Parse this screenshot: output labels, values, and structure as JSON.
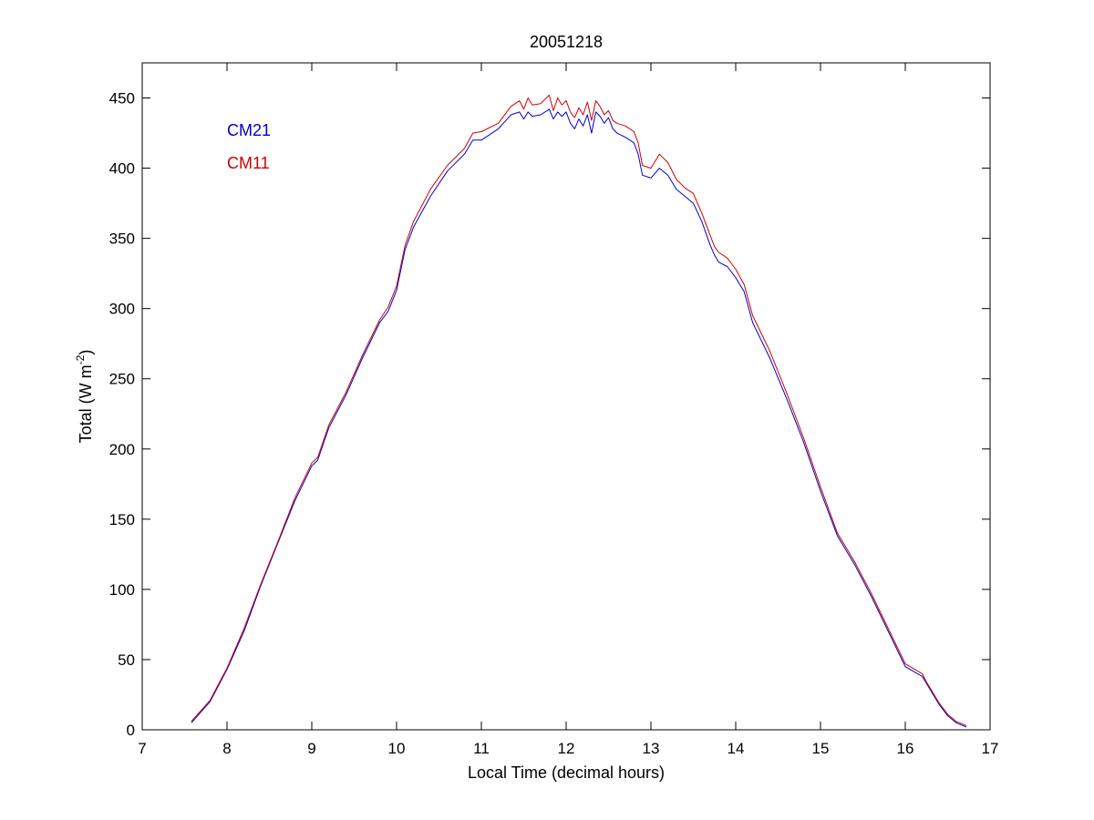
{
  "chart_data": {
    "type": "line",
    "title": "20051218",
    "xlabel": "Local Time (decimal hours)",
    "ylabel": {
      "main": "Total (W m",
      "superscript": "-2",
      "end": ")"
    },
    "xlim": [
      7,
      17
    ],
    "ylim": [
      0,
      475
    ],
    "xticks": [
      7,
      8,
      9,
      10,
      11,
      12,
      13,
      14,
      15,
      16,
      17
    ],
    "yticks": [
      0,
      50,
      100,
      150,
      200,
      250,
      300,
      350,
      400,
      450
    ],
    "grid": false,
    "legend_position": "top-left",
    "series": [
      {
        "name": "CM21",
        "color": "#0000cc",
        "x": [
          7.58,
          7.8,
          8.0,
          8.2,
          8.4,
          8.6,
          8.8,
          9.0,
          9.07,
          9.2,
          9.4,
          9.6,
          9.8,
          9.9,
          10.0,
          10.1,
          10.2,
          10.4,
          10.6,
          10.8,
          10.9,
          11.0,
          11.2,
          11.35,
          11.45,
          11.5,
          11.55,
          11.6,
          11.7,
          11.8,
          11.85,
          11.9,
          11.95,
          12.0,
          12.05,
          12.1,
          12.15,
          12.2,
          12.25,
          12.3,
          12.35,
          12.4,
          12.45,
          12.5,
          12.55,
          12.6,
          12.7,
          12.8,
          12.85,
          12.9,
          13.0,
          13.1,
          13.2,
          13.3,
          13.4,
          13.5,
          13.6,
          13.7,
          13.75,
          13.8,
          13.9,
          14.0,
          14.1,
          14.2,
          14.4,
          14.6,
          14.8,
          15.0,
          15.2,
          15.4,
          15.6,
          15.8,
          16.0,
          16.2,
          16.25,
          16.3,
          16.4,
          16.5,
          16.6,
          16.72
        ],
        "y": [
          5,
          20,
          43,
          70,
          103,
          133,
          163,
          188,
          192,
          215,
          238,
          265,
          290,
          298,
          313,
          342,
          358,
          380,
          398,
          410,
          420,
          420,
          428,
          438,
          440,
          435,
          440,
          437,
          438,
          442,
          435,
          440,
          437,
          440,
          432,
          428,
          435,
          430,
          438,
          425,
          440,
          437,
          432,
          436,
          428,
          425,
          422,
          418,
          410,
          395,
          393,
          400,
          395,
          385,
          380,
          375,
          362,
          345,
          338,
          333,
          330,
          322,
          312,
          290,
          265,
          236,
          205,
          170,
          138,
          118,
          95,
          70,
          45,
          38,
          33,
          28,
          18,
          10,
          5,
          2
        ]
      },
      {
        "name": "CM11",
        "color": "#cc0000",
        "x": [
          7.58,
          7.8,
          8.0,
          8.2,
          8.4,
          8.6,
          8.8,
          9.0,
          9.07,
          9.2,
          9.4,
          9.6,
          9.8,
          9.9,
          10.0,
          10.1,
          10.2,
          10.4,
          10.6,
          10.8,
          10.9,
          11.0,
          11.2,
          11.35,
          11.45,
          11.5,
          11.55,
          11.6,
          11.7,
          11.8,
          11.85,
          11.9,
          11.95,
          12.0,
          12.05,
          12.1,
          12.15,
          12.2,
          12.25,
          12.3,
          12.35,
          12.4,
          12.45,
          12.5,
          12.55,
          12.6,
          12.7,
          12.8,
          12.85,
          12.9,
          13.0,
          13.1,
          13.2,
          13.3,
          13.4,
          13.5,
          13.6,
          13.7,
          13.75,
          13.8,
          13.9,
          14.0,
          14.1,
          14.2,
          14.4,
          14.6,
          14.8,
          15.0,
          15.2,
          15.4,
          15.6,
          15.8,
          16.0,
          16.2,
          16.25,
          16.3,
          16.4,
          16.5,
          16.6,
          16.72
        ],
        "y": [
          6,
          21,
          44,
          72,
          104,
          134,
          165,
          190,
          194,
          217,
          240,
          267,
          292,
          301,
          316,
          345,
          362,
          385,
          402,
          414,
          425,
          426,
          432,
          444,
          448,
          442,
          450,
          445,
          446,
          452,
          441,
          450,
          445,
          448,
          440,
          436,
          443,
          438,
          447,
          434,
          448,
          444,
          438,
          441,
          434,
          432,
          430,
          426,
          418,
          402,
          400,
          410,
          404,
          392,
          386,
          382,
          368,
          352,
          344,
          340,
          336,
          328,
          317,
          295,
          270,
          240,
          208,
          173,
          140,
          120,
          97,
          72,
          47,
          40,
          34,
          29,
          19,
          11,
          6,
          3
        ]
      }
    ]
  }
}
